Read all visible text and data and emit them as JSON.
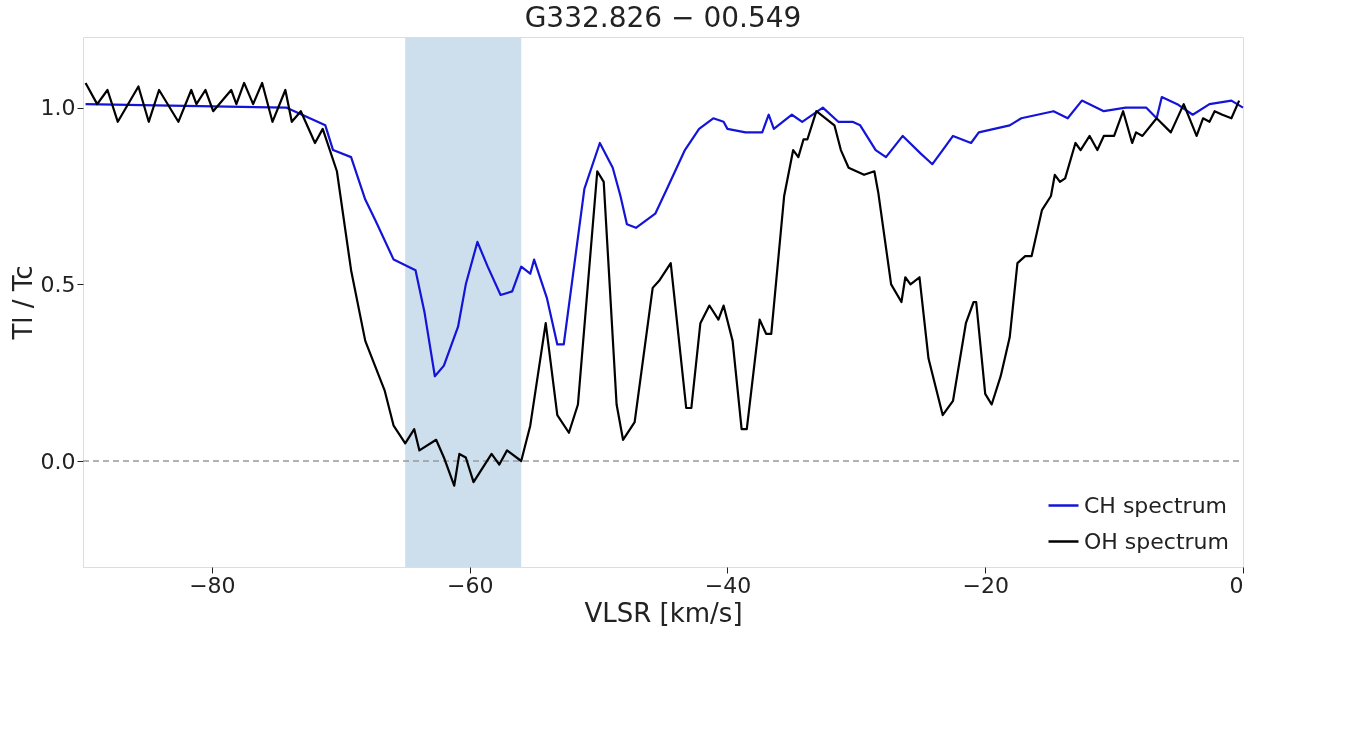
{
  "chart_data": {
    "type": "line",
    "title": "G332.826 − 00.549",
    "xlabel": "VLSR  [km/s]",
    "ylabel": "Tl / Tc",
    "xlim": [
      -90,
      0
    ],
    "xticks": [
      -80,
      -60,
      -40,
      -20,
      0
    ],
    "ylim": [
      -0.3,
      1.2
    ],
    "yticks": [
      {
        "value": 0,
        "label": "0.0"
      },
      {
        "value": 0.5,
        "label": "0.5"
      },
      {
        "value": 1,
        "label": "1.0"
      }
    ],
    "grid": false,
    "legend": "bottom right",
    "line_style": "solid",
    "marker": "none",
    "ref_lines": [
      {
        "axis": "y",
        "value": 0,
        "color": "#999999",
        "line_style": "dashed"
      }
    ],
    "bands": [
      {
        "axis": "x",
        "from": -65,
        "to": -56,
        "color": "#cddeec"
      }
    ],
    "series": [
      {
        "name": "CH spectrum",
        "color": "#1414d8",
        "x": [
          -89.8,
          -74.2,
          -71.2,
          -70.6,
          -69.2,
          -68.1,
          -67.3,
          -65.9,
          -64.2,
          -63.5,
          -62.7,
          -62.0,
          -60.9,
          -60.3,
          -59.4,
          -58.6,
          -57.6,
          -56.7,
          -56.0,
          -55.3,
          -55.0,
          -54.0,
          -53.2,
          -52.7,
          -51.1,
          -49.9,
          -48.9,
          -48.3,
          -47.8,
          -47.1,
          -45.6,
          -44.7,
          -43.3,
          -42.2,
          -41.1,
          -40.3,
          -40.0,
          -38.6,
          -37.3,
          -36.8,
          -36.4,
          -35.0,
          -34.2,
          -32.6,
          -31.4,
          -30.3,
          -29.7,
          -28.5,
          -27.7,
          -26.4,
          -25.0,
          -24.1,
          -23.3,
          -22.5,
          -21.1,
          -20.5,
          -18.1,
          -17.2,
          -14.7,
          -13.6,
          -12.5,
          -10.8,
          -9.1,
          -7.5,
          -6.7,
          -6.3,
          -5.1,
          -3.9,
          -2.6,
          -0.9,
          0
        ],
        "values": [
          1.01,
          1.0,
          0.95,
          0.88,
          0.86,
          0.74,
          0.68,
          0.57,
          0.54,
          0.42,
          0.24,
          0.27,
          0.38,
          0.5,
          0.62,
          0.55,
          0.47,
          0.48,
          0.55,
          0.53,
          0.57,
          0.46,
          0.33,
          0.33,
          0.77,
          0.9,
          0.83,
          0.75,
          0.67,
          0.66,
          0.7,
          0.77,
          0.88,
          0.94,
          0.97,
          0.96,
          0.94,
          0.93,
          0.93,
          0.98,
          0.94,
          0.98,
          0.96,
          1.0,
          0.96,
          0.96,
          0.95,
          0.88,
          0.86,
          0.92,
          0.87,
          0.84,
          0.88,
          0.92,
          0.9,
          0.93,
          0.95,
          0.97,
          0.99,
          0.97,
          1.02,
          0.99,
          1.0,
          1.0,
          0.97,
          1.03,
          1.01,
          0.98,
          1.01,
          1.02,
          1.0
        ]
      },
      {
        "name": "OH spectrum",
        "color": "#000000",
        "x": [
          -89.8,
          -88.9,
          -88.1,
          -87.3,
          -85.7,
          -84.9,
          -84.1,
          -82.6,
          -81.6,
          -81.2,
          -80.5,
          -79.9,
          -78.5,
          -78.1,
          -77.5,
          -76.8,
          -76.1,
          -75.3,
          -74.3,
          -73.8,
          -73.1,
          -72.0,
          -71.4,
          -70.3,
          -69.2,
          -68.1,
          -66.6,
          -65.9,
          -65.0,
          -64.3,
          -63.9,
          -62.6,
          -62.0,
          -61.2,
          -60.8,
          -60.3,
          -59.7,
          -58.3,
          -57.7,
          -57.1,
          -56.0,
          -55.3,
          -54.1,
          -53.2,
          -52.3,
          -51.6,
          -50.1,
          -49.6,
          -48.6,
          -48.1,
          -47.2,
          -45.8,
          -45.3,
          -44.4,
          -43.2,
          -42.8,
          -42.1,
          -41.4,
          -40.7,
          -40.3,
          -39.6,
          -38.9,
          -38.5,
          -37.5,
          -37.0,
          -36.6,
          -35.6,
          -34.9,
          -34.5,
          -34.1,
          -33.8,
          -33.1,
          -31.7,
          -31.2,
          -30.6,
          -29.4,
          -28.6,
          -28.3,
          -27.3,
          -26.5,
          -26.2,
          -25.8,
          -25.1,
          -24.4,
          -23.3,
          -22.5,
          -21.5,
          -20.9,
          -20.7,
          -20.0,
          -19.5,
          -18.8,
          -18.1,
          -17.5,
          -16.9,
          -16.4,
          -15.6,
          -14.9,
          -14.6,
          -14.2,
          -13.8,
          -13.0,
          -12.6,
          -11.9,
          -11.3,
          -10.8,
          -10.0,
          -9.3,
          -8.6,
          -8.3,
          -7.8,
          -6.7,
          -5.6,
          -4.6,
          -3.6,
          -3.1,
          -2.6,
          -2.2,
          -1.6,
          -0.9,
          -0.3
        ],
        "values": [
          1.07,
          1.01,
          1.05,
          0.96,
          1.06,
          0.96,
          1.05,
          0.96,
          1.05,
          1.01,
          1.05,
          0.99,
          1.05,
          1.01,
          1.07,
          1.01,
          1.07,
          0.96,
          1.05,
          0.96,
          0.99,
          0.9,
          0.94,
          0.82,
          0.54,
          0.34,
          0.2,
          0.1,
          0.05,
          0.09,
          0.03,
          0.06,
          0.01,
          -0.07,
          0.02,
          0.01,
          -0.06,
          0.02,
          -0.01,
          0.03,
          0.0,
          0.1,
          0.39,
          0.13,
          0.08,
          0.16,
          0.82,
          0.79,
          0.16,
          0.06,
          0.11,
          0.49,
          0.51,
          0.56,
          0.15,
          0.15,
          0.39,
          0.44,
          0.4,
          0.44,
          0.34,
          0.09,
          0.09,
          0.4,
          0.36,
          0.36,
          0.75,
          0.88,
          0.86,
          0.91,
          0.91,
          0.99,
          0.95,
          0.88,
          0.83,
          0.81,
          0.82,
          0.76,
          0.5,
          0.45,
          0.52,
          0.5,
          0.52,
          0.29,
          0.13,
          0.17,
          0.39,
          0.45,
          0.45,
          0.19,
          0.16,
          0.24,
          0.35,
          0.56,
          0.58,
          0.58,
          0.71,
          0.75,
          0.81,
          0.79,
          0.8,
          0.9,
          0.88,
          0.92,
          0.88,
          0.92,
          0.92,
          0.99,
          0.9,
          0.93,
          0.92,
          0.97,
          0.93,
          1.01,
          0.92,
          0.97,
          0.96,
          0.99,
          0.98,
          0.97,
          1.02
        ]
      }
    ]
  }
}
